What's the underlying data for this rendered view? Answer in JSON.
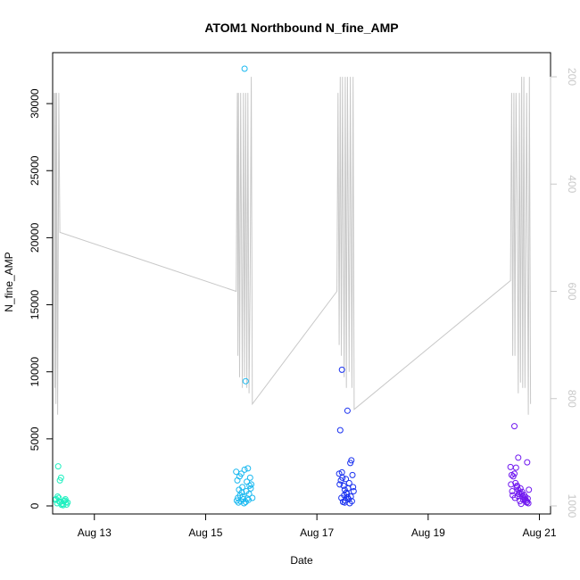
{
  "chart_data": {
    "type": "scatter",
    "title": "ATOM1 Northbound N_fine_AMP",
    "xlabel": "Date",
    "ylabel": "N_fine_AMP",
    "x_ticks": [
      "Aug 13",
      "Aug 15",
      "Aug 17",
      "Aug 19",
      "Aug 21"
    ],
    "x_tick_values": [
      13,
      15,
      17,
      19,
      21
    ],
    "xlim": [
      12.25,
      21.2
    ],
    "ylim": [
      -600,
      33800
    ],
    "y_ticks": [
      0,
      5000,
      10000,
      15000,
      20000,
      25000,
      30000
    ],
    "y2_ticks": [
      200,
      400,
      600,
      800,
      1000
    ],
    "y2lim": [
      1015,
      155
    ],
    "colors": {
      "group1": "#20f0c0",
      "group2": "#18b8f0",
      "group3": "#1830f0",
      "group4": "#7018f0",
      "depth_line": "#c8c8c8"
    },
    "series": [
      {
        "group": "group1",
        "points": [
          [
            12.35,
            2950
          ],
          [
            12.38,
            1900
          ],
          [
            12.4,
            2100
          ],
          [
            12.3,
            450
          ],
          [
            12.33,
            200
          ],
          [
            12.36,
            600
          ],
          [
            12.39,
            300
          ],
          [
            12.42,
            150
          ],
          [
            12.45,
            350
          ],
          [
            12.48,
            500
          ],
          [
            12.5,
            100
          ],
          [
            12.52,
            250
          ],
          [
            12.34,
            700
          ],
          [
            12.44,
            50
          ],
          [
            12.47,
            400
          ],
          [
            12.37,
            320
          ],
          [
            12.43,
            180
          ],
          [
            12.31,
            520
          ],
          [
            12.49,
            270
          ],
          [
            12.41,
            80
          ]
        ]
      },
      {
        "group": "group2",
        "points": [
          [
            15.7,
            32600
          ],
          [
            15.72,
            9300
          ],
          [
            15.55,
            2550
          ],
          [
            15.57,
            1900
          ],
          [
            15.6,
            1200
          ],
          [
            15.62,
            800
          ],
          [
            15.64,
            2400
          ],
          [
            15.66,
            1400
          ],
          [
            15.68,
            500
          ],
          [
            15.7,
            2700
          ],
          [
            15.72,
            300
          ],
          [
            15.74,
            1800
          ],
          [
            15.76,
            2800
          ],
          [
            15.78,
            900
          ],
          [
            15.8,
            2100
          ],
          [
            15.82,
            1600
          ],
          [
            15.56,
            400
          ],
          [
            15.58,
            600
          ],
          [
            15.63,
            350
          ],
          [
            15.67,
            700
          ],
          [
            15.73,
            1100
          ],
          [
            15.77,
            450
          ],
          [
            15.81,
            1300
          ],
          [
            15.84,
            600
          ],
          [
            15.59,
            250
          ],
          [
            15.65,
            1000
          ],
          [
            15.69,
            200
          ],
          [
            15.75,
            550
          ],
          [
            15.79,
            1500
          ],
          [
            15.61,
            2200
          ]
        ]
      },
      {
        "group": "group3",
        "points": [
          [
            17.45,
            10150
          ],
          [
            17.55,
            7100
          ],
          [
            17.42,
            5650
          ],
          [
            17.4,
            2400
          ],
          [
            17.43,
            1900
          ],
          [
            17.46,
            2100
          ],
          [
            17.48,
            1500
          ],
          [
            17.5,
            1200
          ],
          [
            17.52,
            2000
          ],
          [
            17.54,
            900
          ],
          [
            17.56,
            1300
          ],
          [
            17.58,
            1700
          ],
          [
            17.6,
            3200
          ],
          [
            17.62,
            3400
          ],
          [
            17.64,
            2300
          ],
          [
            17.66,
            1100
          ],
          [
            17.44,
            600
          ],
          [
            17.47,
            300
          ],
          [
            17.49,
            800
          ],
          [
            17.51,
            400
          ],
          [
            17.53,
            1000
          ],
          [
            17.57,
            500
          ],
          [
            17.59,
            200
          ],
          [
            17.61,
            700
          ],
          [
            17.63,
            350
          ],
          [
            17.65,
            1400
          ],
          [
            17.41,
            1600
          ],
          [
            17.45,
            2500
          ],
          [
            17.5,
            250
          ],
          [
            17.55,
            650
          ]
        ]
      },
      {
        "group": "group4",
        "points": [
          [
            20.55,
            5950
          ],
          [
            20.62,
            3600
          ],
          [
            20.78,
            3250
          ],
          [
            20.48,
            2900
          ],
          [
            20.58,
            2850
          ],
          [
            20.5,
            2300
          ],
          [
            20.53,
            2200
          ],
          [
            20.55,
            2400
          ],
          [
            20.57,
            1700
          ],
          [
            20.6,
            1500
          ],
          [
            20.62,
            1200
          ],
          [
            20.64,
            1000
          ],
          [
            20.66,
            1300
          ],
          [
            20.68,
            900
          ],
          [
            20.7,
            700
          ],
          [
            20.72,
            600
          ],
          [
            20.74,
            500
          ],
          [
            20.76,
            400
          ],
          [
            20.78,
            300
          ],
          [
            20.8,
            200
          ],
          [
            20.49,
            1600
          ],
          [
            20.51,
            1100
          ],
          [
            20.52,
            800
          ],
          [
            20.56,
            600
          ],
          [
            20.59,
            1400
          ],
          [
            20.61,
            750
          ],
          [
            20.63,
            900
          ],
          [
            20.65,
            350
          ],
          [
            20.67,
            150
          ],
          [
            20.69,
            1050
          ],
          [
            20.71,
            450
          ],
          [
            20.73,
            800
          ],
          [
            20.75,
            650
          ],
          [
            20.77,
            250
          ],
          [
            20.79,
            550
          ],
          [
            20.81,
            1200
          ]
        ]
      }
    ],
    "depth_series": {
      "points": [
        [
          12.28,
          230
        ],
        [
          12.29,
          780
        ],
        [
          12.3,
          230
        ],
        [
          12.31,
          810
        ],
        [
          12.32,
          230
        ],
        [
          12.34,
          830
        ],
        [
          12.36,
          230
        ],
        [
          12.38,
          490
        ],
        [
          15.55,
          600
        ],
        [
          15.57,
          230
        ],
        [
          15.58,
          720
        ],
        [
          15.59,
          230
        ],
        [
          15.61,
          760
        ],
        [
          15.63,
          230
        ],
        [
          15.66,
          780
        ],
        [
          15.68,
          230
        ],
        [
          15.7,
          760
        ],
        [
          15.72,
          230
        ],
        [
          15.74,
          780
        ],
        [
          15.76,
          230
        ],
        [
          15.78,
          790
        ],
        [
          15.8,
          590
        ],
        [
          15.82,
          200
        ],
        [
          15.84,
          810
        ],
        [
          17.36,
          600
        ],
        [
          17.38,
          230
        ],
        [
          17.4,
          700
        ],
        [
          17.42,
          200
        ],
        [
          17.44,
          720
        ],
        [
          17.46,
          200
        ],
        [
          17.49,
          760
        ],
        [
          17.51,
          200
        ],
        [
          17.53,
          780
        ],
        [
          17.55,
          200
        ],
        [
          17.58,
          750
        ],
        [
          17.6,
          200
        ],
        [
          17.63,
          780
        ],
        [
          17.65,
          200
        ],
        [
          17.67,
          820
        ],
        [
          20.48,
          580
        ],
        [
          20.5,
          230
        ],
        [
          20.52,
          720
        ],
        [
          20.54,
          230
        ],
        [
          20.56,
          720
        ],
        [
          20.58,
          230
        ],
        [
          20.6,
          430
        ],
        [
          20.62,
          790
        ],
        [
          20.64,
          230
        ],
        [
          20.66,
          770
        ],
        [
          20.68,
          200
        ],
        [
          20.7,
          780
        ],
        [
          20.72,
          200
        ],
        [
          20.74,
          780
        ],
        [
          20.77,
          230
        ],
        [
          20.8,
          830
        ],
        [
          20.82,
          200
        ],
        [
          20.84,
          810
        ]
      ]
    }
  }
}
